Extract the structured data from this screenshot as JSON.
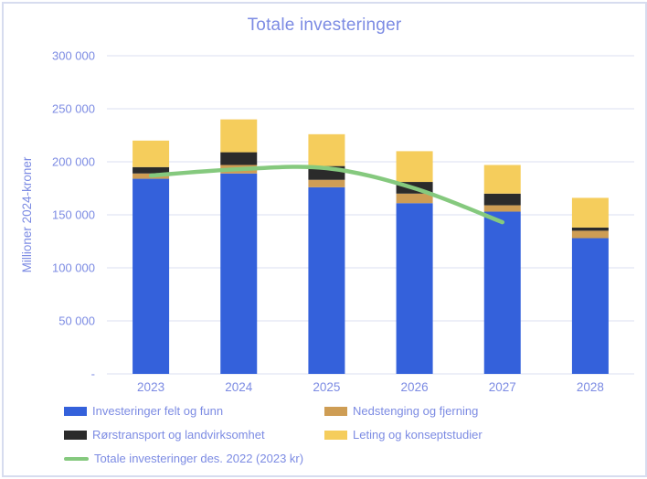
{
  "window": {
    "background": "#FFFFFF",
    "border_color": "#D7DCEF",
    "text_color": "#7C8BE3",
    "gridline_color": "#E7EAF5"
  },
  "chart_data": {
    "type": "bar",
    "variant": "stacked-columns-with-line-overlay",
    "title": "Totale investeringer",
    "ylabel": "Millioner 2024-kroner",
    "xlabel": "",
    "categories": [
      "2023",
      "2024",
      "2025",
      "2026",
      "2027",
      "2028"
    ],
    "series": [
      {
        "name": "Investeringer felt og funn",
        "color": "#3461DB",
        "values": [
          184000,
          189000,
          176000,
          161000,
          153000,
          128000
        ]
      },
      {
        "name": "Nedstenging og fjerning",
        "color": "#CE9D54",
        "values": [
          5000,
          8000,
          7000,
          9000,
          6000,
          7000
        ]
      },
      {
        "name": "Rørstransport og landvirksomhet",
        "color": "#2B2B2B",
        "values": [
          6000,
          12000,
          13000,
          11000,
          11000,
          3000
        ]
      },
      {
        "name": "Leting og konseptstudier",
        "color": "#F5CD5C",
        "values": [
          25000,
          31000,
          30000,
          29000,
          27000,
          28000
        ]
      }
    ],
    "totals": [
      220000,
      240000,
      226000,
      210000,
      197000,
      166000
    ],
    "line_series": {
      "name": "Totale investeringer des. 2022 (2023 kr)",
      "color": "#85C97E",
      "values": [
        187000,
        193000,
        194000,
        175000,
        143000,
        null
      ]
    },
    "y_ticks": [
      {
        "value": 0,
        "label": "-"
      },
      {
        "value": 50000,
        "label": "50 000"
      },
      {
        "value": 100000,
        "label": "100 000"
      },
      {
        "value": 150000,
        "label": "150 000"
      },
      {
        "value": 200000,
        "label": "200 000"
      },
      {
        "value": 250000,
        "label": "250 000"
      },
      {
        "value": 300000,
        "label": "300 000"
      }
    ],
    "ylim": [
      0,
      300000
    ],
    "grid": true,
    "legend_position": "bottom"
  }
}
